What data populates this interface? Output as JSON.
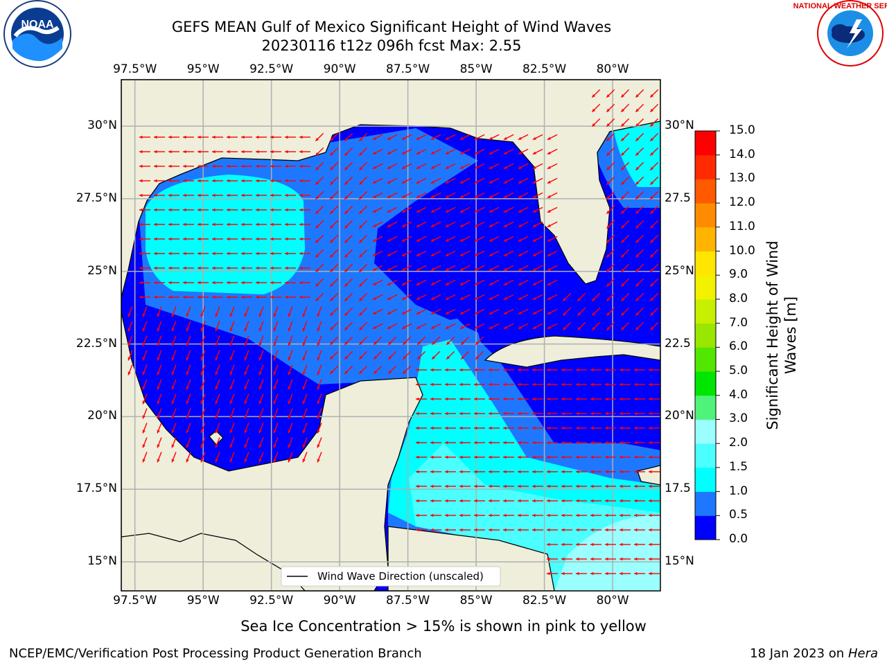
{
  "title": {
    "line1": "GEFS MEAN Gulf of Mexico Significant Height of Wind Waves",
    "line2": "20230116 t12z 096h fcst   Max: 2.55"
  },
  "axes": {
    "lon_labels": [
      "97.5°W",
      "95°W",
      "92.5°W",
      "90°W",
      "87.5°W",
      "85°W",
      "82.5°W",
      "80°W"
    ],
    "lat_labels": [
      "30°N",
      "27.5°N",
      "25°N",
      "22.5°N",
      "20°N",
      "17.5°N",
      "15°N"
    ],
    "lat_labels_right": [
      "30°N",
      "27.5",
      "25°N",
      "22.5",
      "20°N",
      "17.5",
      "15°N"
    ],
    "lon_range": [
      -98,
      -78.25
    ],
    "lat_range": [
      14,
      31.6
    ]
  },
  "legend": {
    "label": "Wind Wave Direction (unscaled)"
  },
  "colorbar": {
    "label_line1": "Significant Height of Wind",
    "label_line2": "Waves [m]",
    "ticks": [
      "0.0",
      "0.5",
      "1.0",
      "1.5",
      "2.0",
      "3.0",
      "4.0",
      "5.0",
      "6.0",
      "7.0",
      "8.0",
      "9.0",
      "10.0",
      "11.0",
      "12.0",
      "13.0",
      "14.0",
      "15.0"
    ],
    "colors": [
      "#0000ff",
      "#1e78ff",
      "#00ffff",
      "#4bffff",
      "#9bffff",
      "#4ff37a",
      "#00e600",
      "#52e600",
      "#99e600",
      "#c7ef00",
      "#f2f200",
      "#ffe600",
      "#ffb400",
      "#ff8c00",
      "#ff5a00",
      "#ff2a00",
      "#ff0000"
    ]
  },
  "map_colors": {
    "land": "#eeeedb",
    "band_0_0.5": "#0000ff",
    "band_0.5_1.0": "#1e78ff",
    "band_1.0_1.5": "#00ffff",
    "band_1.5_2.0": "#4bffff",
    "band_2.0_3.0": "#9bffff",
    "arrow": "#ff0000",
    "grid": "#b0b0b0"
  },
  "footer": {
    "note": "Sea Ice Concentration > 15% is shown in pink to yellow",
    "left": "NCEP/EMC/Verification Post Processing Product Generation Branch",
    "right_prefix": "18 Jan 2023 on ",
    "right_host": "Hera"
  },
  "logos": {
    "noaa_text": "NOAA",
    "nws_text": "NATIONAL WEATHER SERVICE"
  }
}
